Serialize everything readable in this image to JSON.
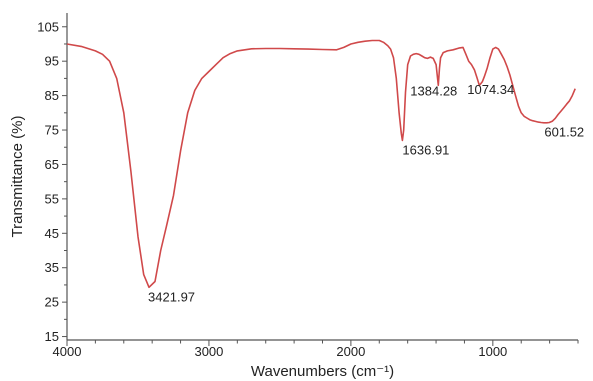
{
  "chart_data": {
    "type": "line",
    "title": "",
    "xlabel": "Wavenumbers (cm⁻¹)",
    "ylabel": "Transmittance (%)",
    "xlim": [
      4000,
      400
    ],
    "ylim": [
      14,
      109
    ],
    "x_reversed": true,
    "grid": false,
    "line_color": "#d0494a",
    "x_ticks": [
      4000,
      3000,
      2000,
      1000
    ],
    "x_tick_labels": [
      "4000",
      "3000",
      "2000",
      "1000"
    ],
    "y_ticks": [
      15,
      25,
      35,
      45,
      55,
      65,
      75,
      85,
      95,
      105
    ],
    "y_tick_labels": [
      "15",
      "25",
      "35",
      "45",
      "55",
      "65",
      "75",
      "85",
      "95",
      "105"
    ],
    "series": [
      {
        "x": [
          4000,
          3900,
          3800,
          3750,
          3700,
          3650,
          3600,
          3550,
          3500,
          3460,
          3422,
          3380,
          3340,
          3300,
          3250,
          3200,
          3150,
          3100,
          3050,
          3000,
          2950,
          2900,
          2850,
          2800,
          2700,
          2600,
          2500,
          2400,
          2300,
          2200,
          2100,
          2050,
          2000,
          1950,
          1900,
          1850,
          1800,
          1770,
          1740,
          1720,
          1700,
          1680,
          1660,
          1645,
          1637,
          1628,
          1615,
          1600,
          1580,
          1560,
          1540,
          1520,
          1500,
          1480,
          1460,
          1440,
          1420,
          1400,
          1392,
          1384,
          1376,
          1368,
          1350,
          1320,
          1280,
          1240,
          1210,
          1190,
          1170,
          1150,
          1130,
          1110,
          1095,
          1085,
          1074,
          1060,
          1040,
          1020,
          1000,
          980,
          960,
          940,
          920,
          900,
          880,
          860,
          840,
          820,
          800,
          780,
          760,
          740,
          720,
          700,
          680,
          660,
          640,
          620,
          602,
          580,
          560,
          540,
          520,
          500,
          480,
          460,
          440,
          420
        ],
        "y": [
          100,
          99.3,
          98,
          97,
          95,
          90,
          80,
          63,
          44,
          33,
          29.3,
          31,
          40,
          47,
          56,
          69,
          80,
          86.5,
          90,
          92,
          94,
          96,
          97.2,
          98,
          98.6,
          98.7,
          98.7,
          98.6,
          98.5,
          98.4,
          98.3,
          99,
          100,
          100.5,
          100.8,
          101,
          101,
          100.5,
          99.5,
          98.5,
          96,
          90,
          80,
          74,
          72,
          75,
          86,
          94,
          96.5,
          97,
          97.2,
          97,
          96.5,
          96,
          95.8,
          96.2,
          95.8,
          94,
          91,
          88,
          93,
          96,
          97.5,
          98,
          98.3,
          98.8,
          99,
          97,
          95,
          94,
          92.5,
          90,
          88,
          88.5,
          89,
          90.5,
          93,
          96,
          98.5,
          99,
          98.5,
          97,
          95.5,
          93.5,
          91,
          88,
          85,
          82,
          80,
          79,
          78.5,
          78,
          77.7,
          77.5,
          77.3,
          77.2,
          77.1,
          77.1,
          77.2,
          77.6,
          78.4,
          79.5,
          80.5,
          81.5,
          82.5,
          83.5,
          85,
          87
        ]
      }
    ],
    "annotations": [
      {
        "x": 3421.97,
        "y": 29.3,
        "text": "3421.97"
      },
      {
        "x": 1636.91,
        "y": 72,
        "text": "1636.91"
      },
      {
        "x": 1384.28,
        "y": 88,
        "text": "1384.28"
      },
      {
        "x": 1074.34,
        "y": 89,
        "text": "1074.34"
      },
      {
        "x": 601.52,
        "y": 77.2,
        "text": "601.52"
      }
    ]
  }
}
